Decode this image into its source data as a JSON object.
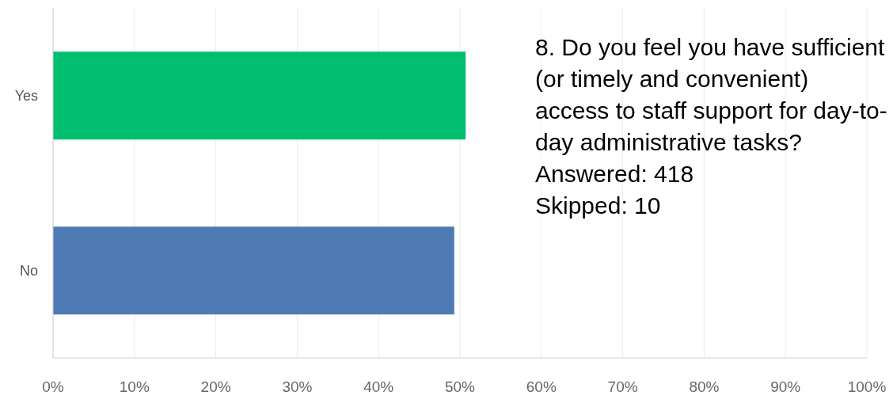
{
  "chart_data": {
    "type": "bar",
    "orientation": "horizontal",
    "title": "8. Do you feel you have sufficient (or timely and convenient) access to staff support for day-to-day administrative tasks?",
    "annotations": [
      "Answered: 418",
      "Skipped: 10"
    ],
    "categories": [
      "Yes",
      "No"
    ],
    "values": [
      50.7,
      49.3
    ],
    "colors": [
      "#00bf6f",
      "#4f7bb4"
    ],
    "xlim": [
      0,
      100
    ],
    "xticks": [
      {
        "value": 0,
        "label": "0%"
      },
      {
        "value": 10,
        "label": "10%"
      },
      {
        "value": 20,
        "label": "20%"
      },
      {
        "value": 30,
        "label": "30%"
      },
      {
        "value": 40,
        "label": "40%"
      },
      {
        "value": 50,
        "label": "50%"
      },
      {
        "value": 60,
        "label": "60%"
      },
      {
        "value": 70,
        "label": "70%"
      },
      {
        "value": 80,
        "label": "80%"
      },
      {
        "value": 90,
        "label": "90%"
      },
      {
        "value": 100,
        "label": "100%"
      }
    ],
    "grid": "x"
  }
}
